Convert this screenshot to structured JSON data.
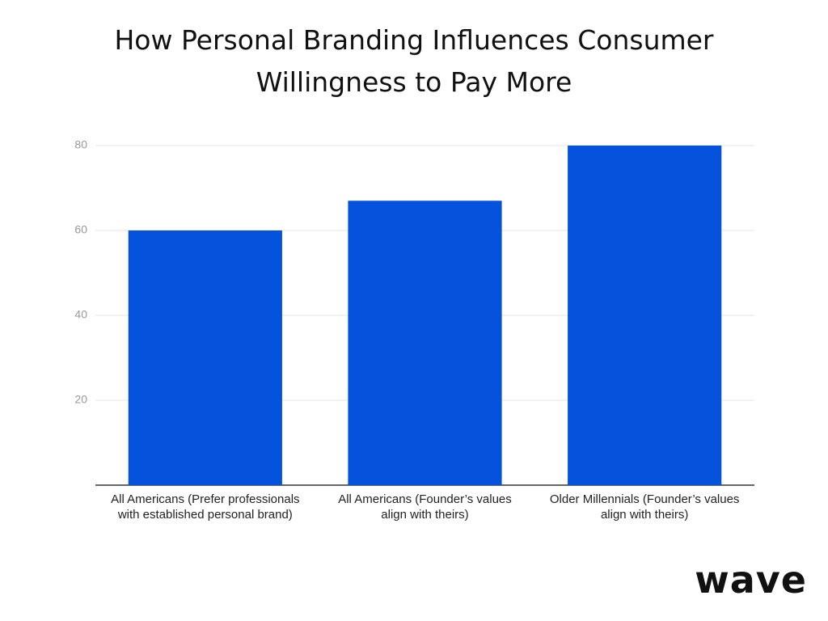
{
  "chart_data": {
    "type": "bar",
    "title": "How Personal Branding Influences Consumer Willingness to Pay More",
    "categories": [
      "All Americans (Prefer professionals with established personal brand)",
      "All Americans (Founder’s values align with theirs)",
      "Older Millennials (Founder’s values align with theirs)"
    ],
    "values": [
      60,
      67,
      80
    ],
    "color": "#0553dc",
    "ylim": [
      0,
      80
    ],
    "yticks": [
      20,
      40,
      60,
      80
    ],
    "grid": true
  },
  "logo": "wave"
}
